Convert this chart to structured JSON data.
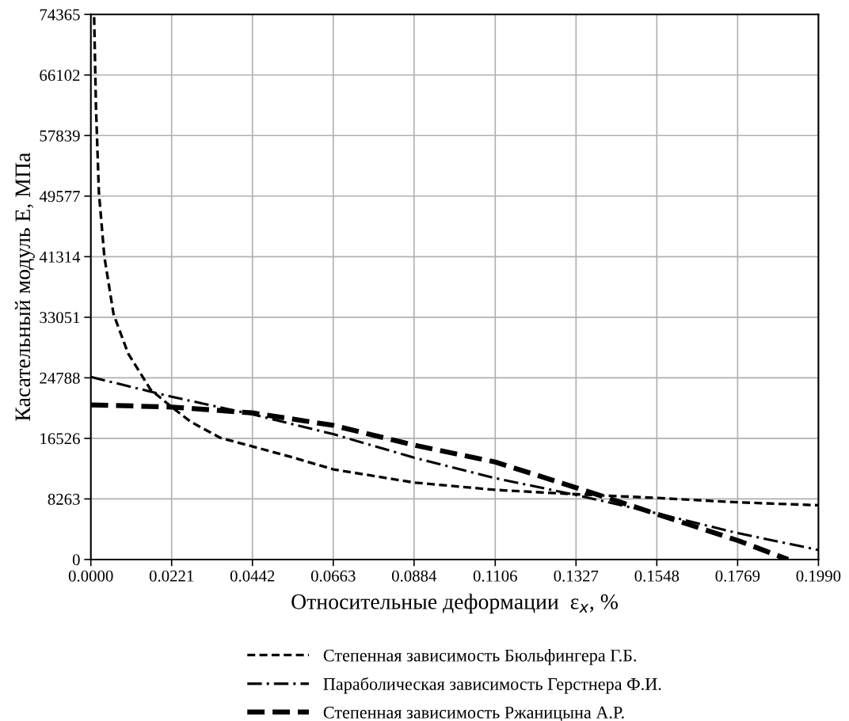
{
  "chart_data": {
    "type": "line",
    "xlabel": "Относительные деформации  ε$_{x}$, %",
    "ylabel": "Касательный модуль E, МПа",
    "xlim": [
      0,
      0.199
    ],
    "ylim": [
      0,
      74365
    ],
    "xticks": [
      {
        "value": 0,
        "label": "0.0000"
      },
      {
        "value": 0.0221,
        "label": "0.0221"
      },
      {
        "value": 0.0442,
        "label": "0.0442"
      },
      {
        "value": 0.0663,
        "label": "0.0663"
      },
      {
        "value": 0.0884,
        "label": "0.0884"
      },
      {
        "value": 0.1106,
        "label": "0.1106"
      },
      {
        "value": 0.1327,
        "label": "0.1327"
      },
      {
        "value": 0.1548,
        "label": "0.1548"
      },
      {
        "value": 0.1769,
        "label": "0.1769"
      },
      {
        "value": 0.199,
        "label": "0.1990"
      }
    ],
    "yticks": [
      0,
      8263,
      16526,
      24788,
      33051,
      41314,
      49577,
      57839,
      66102,
      74365
    ],
    "grid": true,
    "legend": "bottom",
    "marker": "none",
    "series": [
      {
        "name": "Степенная зависимость Бюльфингера Г.Б.",
        "color": "#000000",
        "line_style": "dashed",
        "x": [
          0.0009,
          0.0014,
          0.0022,
          0.0037,
          0.0062,
          0.0102,
          0.0163,
          0.0221,
          0.0273,
          0.0354,
          0.0444,
          0.0554,
          0.0663,
          0.0884,
          0.1106,
          0.1327,
          0.1548,
          0.1769,
          0.199
        ],
        "values": [
          74000,
          61800,
          50100,
          41300,
          33500,
          28100,
          23200,
          20800,
          18800,
          16600,
          15400,
          13900,
          12300,
          10500,
          9500,
          8900,
          8400,
          7800,
          7400
        ]
      },
      {
        "name": "Параболическая зависимость Герстнера Ф.И.",
        "color": "#000000",
        "line_style": "dashdot",
        "x": [
          0,
          0.0221,
          0.0442,
          0.0663,
          0.0884,
          0.1106,
          0.1327,
          0.1548,
          0.1769,
          0.199
        ],
        "values": [
          24900,
          22200,
          19800,
          17100,
          13900,
          11100,
          8800,
          6300,
          3600,
          1300
        ]
      },
      {
        "name": "Степенная зависимость Ржаницына А.Р.",
        "color": "#000000",
        "line_style": "bold dashed",
        "x": [
          0,
          0.0221,
          0.0442,
          0.0663,
          0.0884,
          0.1106,
          0.1327,
          0.1548,
          0.1769,
          0.1907
        ],
        "values": [
          21100,
          20800,
          20000,
          18300,
          15600,
          13300,
          9800,
          6200,
          2600,
          0
        ]
      }
    ]
  }
}
